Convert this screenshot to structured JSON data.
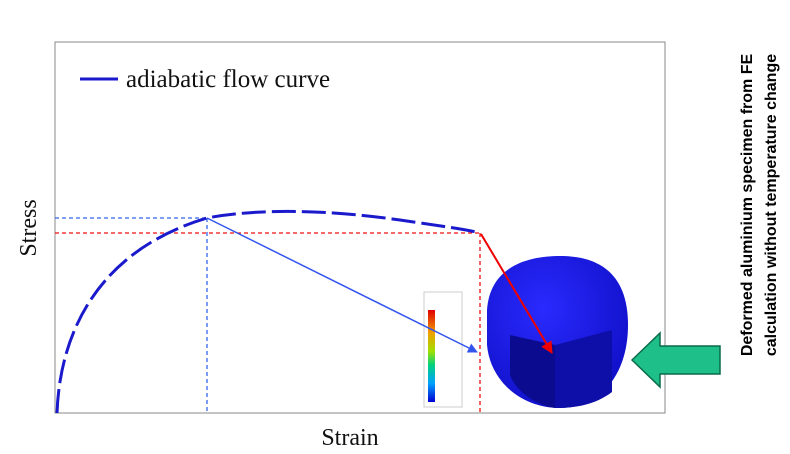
{
  "legend": {
    "label": "adiabatic flow curve"
  },
  "axes": {
    "y_label": "Stress",
    "x_label": "Strain"
  },
  "side_note": {
    "lines": [
      "Deformed aluminium specimen from FE",
      "calculation without temperature change"
    ]
  }
}
